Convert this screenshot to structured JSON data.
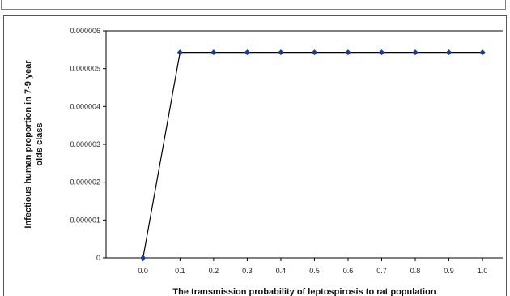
{
  "chart_data": {
    "type": "line",
    "xlabel": "The transmission probability of leptospirosis to rat population",
    "ylabel_line1": "Infectious human proportion in 7-9 year",
    "ylabel_line2": "olds class",
    "x": [
      0.01,
      0.12,
      0.22,
      0.32,
      0.42,
      0.52,
      0.62,
      0.72,
      0.82,
      0.92,
      1.02
    ],
    "values": [
      0,
      5.43e-06,
      5.43e-06,
      5.43e-06,
      5.43e-06,
      5.43e-06,
      5.43e-06,
      5.43e-06,
      5.43e-06,
      5.43e-06,
      5.43e-06
    ],
    "x_tick_labels": [
      "0.0",
      "0.1",
      "0.2",
      "0.3",
      "0.4",
      "0.5",
      "0.6",
      "0.7",
      "0.8",
      "0.9",
      "1.0"
    ],
    "y_tick_labels": [
      "0",
      "0.000001",
      "0.000002",
      "0.000003",
      "0.000004",
      "0.000005",
      "0.000006"
    ],
    "ylim": [
      0,
      6e-06
    ],
    "grid": false,
    "line_color": "#000000",
    "marker_color": "#1f3a93"
  }
}
